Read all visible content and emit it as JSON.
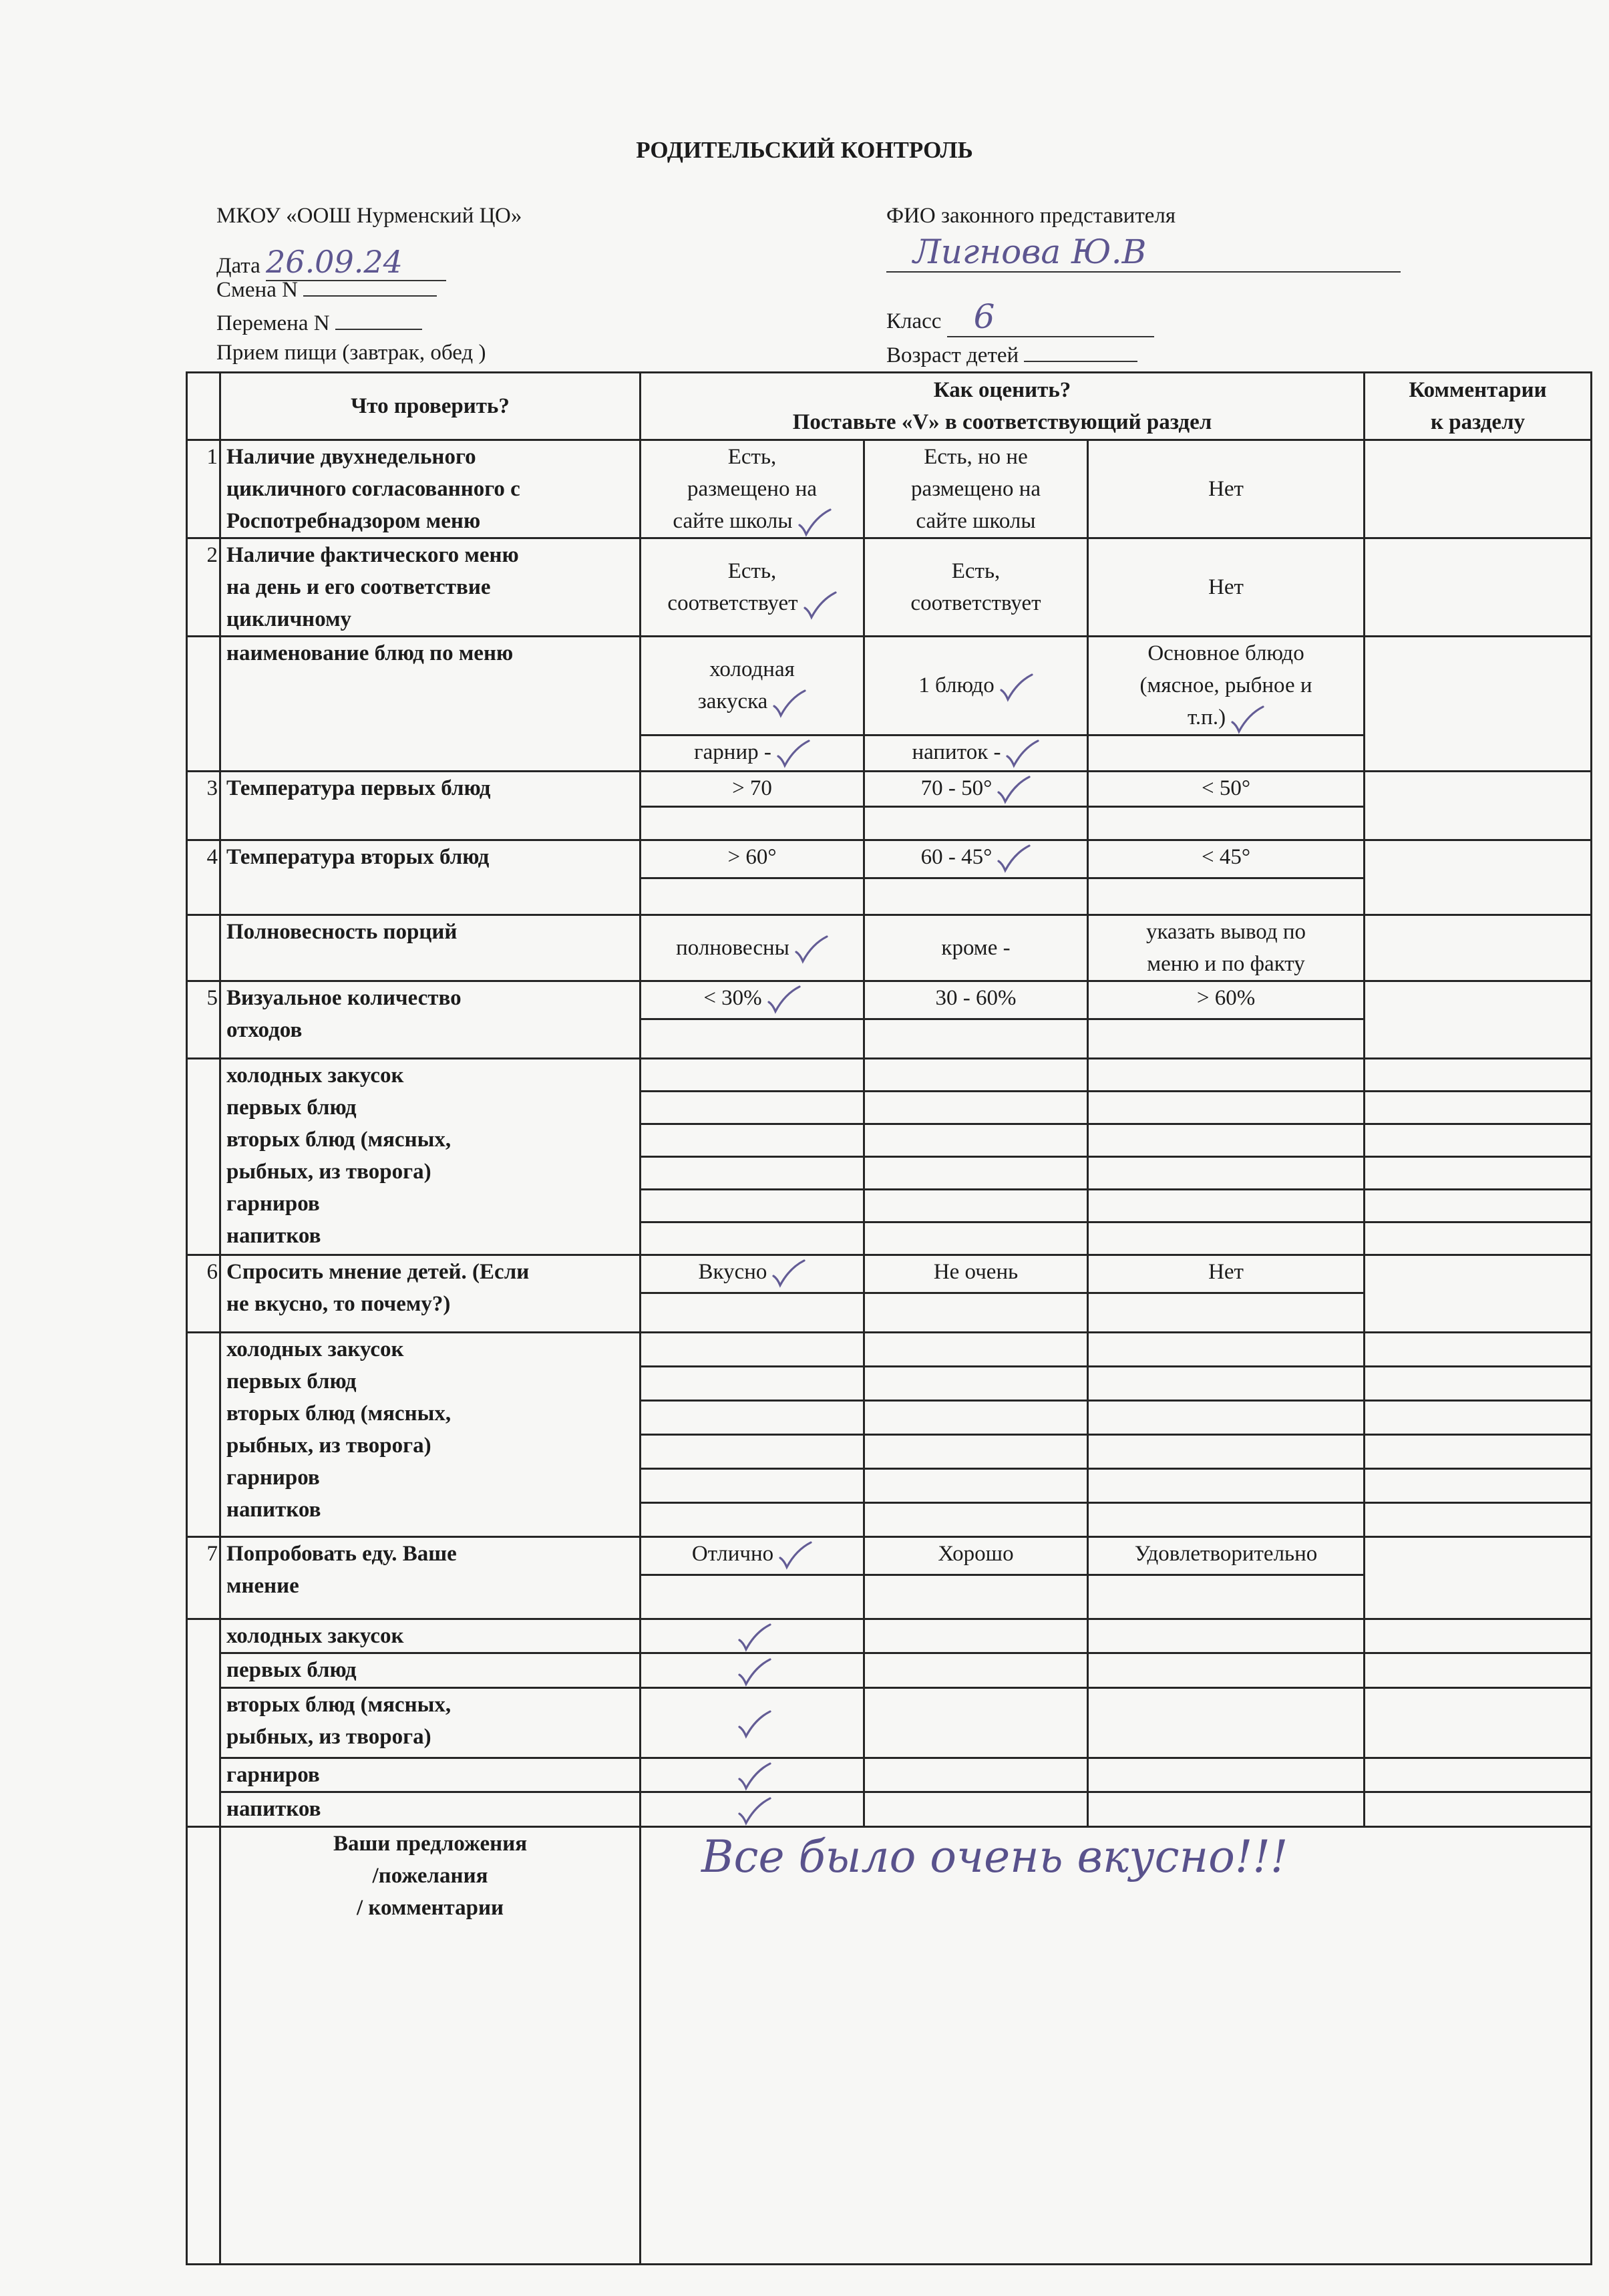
{
  "title": "РОДИТЕЛЬСКИЙ КОНТРОЛЬ",
  "header": {
    "school": "МКОУ «ООШ Нурменский ЦО»",
    "date_label": "Дата",
    "date_value": "26.09.24",
    "shift_label": "Смена N",
    "break_label": "Перемена N",
    "meal_label": "Прием пищи (завтрак, обед )",
    "guardian_label": "ФИО законного представителя",
    "guardian_value": "Лигнова Ю.В",
    "class_label": "Класс",
    "class_value": "6",
    "age_label": "Возраст детей"
  },
  "table": {
    "col_what": "Что проверить?",
    "col_how": "Как оценить?\nПоставьте «V» в соответствующий раздел",
    "col_comments": "Комментарии\nк разделу",
    "r1": {
      "num": "1",
      "label": "Наличие двухнедельного\nцикличного согласованного с\nРоспотребнадзором меню",
      "options": [
        {
          "label": "Есть,\nразмещено на\nсайте школы",
          "checked": true
        },
        {
          "label": "Есть, но не\nразмещено на\nсайте школы",
          "checked": false
        },
        {
          "label": "Нет",
          "checked": false
        }
      ]
    },
    "r2": {
      "num": "2",
      "label": "Наличие фактического меню\nна день и его соответствие\nцикличному",
      "options": [
        {
          "label": "Есть,\nсоответствует",
          "checked": true
        },
        {
          "label": "Есть,\nсоответствует",
          "checked": false
        },
        {
          "label": "Нет",
          "checked": false
        }
      ]
    },
    "dishes": {
      "label": "наименование блюд по меню",
      "options": [
        {
          "label": "холодная\nзакуска",
          "checked": true
        },
        {
          "label": "1 блюдо",
          "checked": true
        },
        {
          "label": "Основное блюдо\n(мясное, рыбное и\nт.п.)",
          "checked": true
        }
      ],
      "options2": [
        {
          "label": "гарнир -",
          "checked": true
        },
        {
          "label": "напиток -",
          "checked": true
        }
      ]
    },
    "r3": {
      "num": "3",
      "label": "Температура первых блюд",
      "options": [
        {
          "label": "> 70",
          "checked": false
        },
        {
          "label": "70 - 50°",
          "checked": true
        },
        {
          "label": "< 50°",
          "checked": false
        }
      ]
    },
    "r4": {
      "num": "4",
      "label": "Температура вторых блюд",
      "options": [
        {
          "label": "> 60°",
          "checked": false
        },
        {
          "label": "60 - 45°",
          "checked": true
        },
        {
          "label": "< 45°",
          "checked": false
        }
      ]
    },
    "portions": {
      "label": "Полновесность порций",
      "options": [
        {
          "label": "полновесны",
          "checked": true
        },
        {
          "label": "кроме -",
          "checked": false
        },
        {
          "label": "указать вывод по\nменю и по факту",
          "checked": false
        }
      ]
    },
    "r5": {
      "num": "5",
      "label": "Визуальное количество\nотходов",
      "options": [
        {
          "label": "< 30%",
          "checked": true
        },
        {
          "label": "30 - 60%",
          "checked": false
        },
        {
          "label": "> 60%",
          "checked": false
        }
      ]
    },
    "waste_items": "холодных закусок\nпервых блюд\nвторых блюд (мясных,\nрыбных, из творога)\nгарниров\nнапитков",
    "r6": {
      "num": "6",
      "label": "Спросить мнение детей. (Если\nне вкусно, то почему?)",
      "options": [
        {
          "label": "Вкусно",
          "checked": true
        },
        {
          "label": "Не очень",
          "checked": false
        },
        {
          "label": "Нет",
          "checked": false
        }
      ]
    },
    "opinion_items": "холодных закусок\nпервых блюд\nвторых блюд (мясных,\nрыбных, из творога)\nгарниров\nнапитков",
    "r7": {
      "num": "7",
      "label": "Попробовать еду. Ваше\nмнение",
      "options": [
        {
          "label": "Отлично",
          "checked": true
        },
        {
          "label": "Хорошо",
          "checked": false
        },
        {
          "label": "Удовлетворительно",
          "checked": false
        }
      ]
    },
    "tasting": [
      {
        "label": "холодных закусок",
        "rating": "Отлично"
      },
      {
        "label": "первых блюд",
        "rating": "Отлично"
      },
      {
        "label": "вторых блюд (мясных,\nрыбных, из творога)",
        "rating": "Отлично"
      },
      {
        "label": "гарниров",
        "rating": "Отлично"
      },
      {
        "label": "напитков",
        "rating": "Отлично"
      }
    ],
    "suggestions_label": "Ваши предложения\n/пожелания\n/ комментарии",
    "suggestions_value": "Все было очень вкусно!!!"
  },
  "colors": {
    "ink": "#1c1c1c",
    "handwriting": "#5d5690",
    "paper": "#f7f7f5"
  }
}
